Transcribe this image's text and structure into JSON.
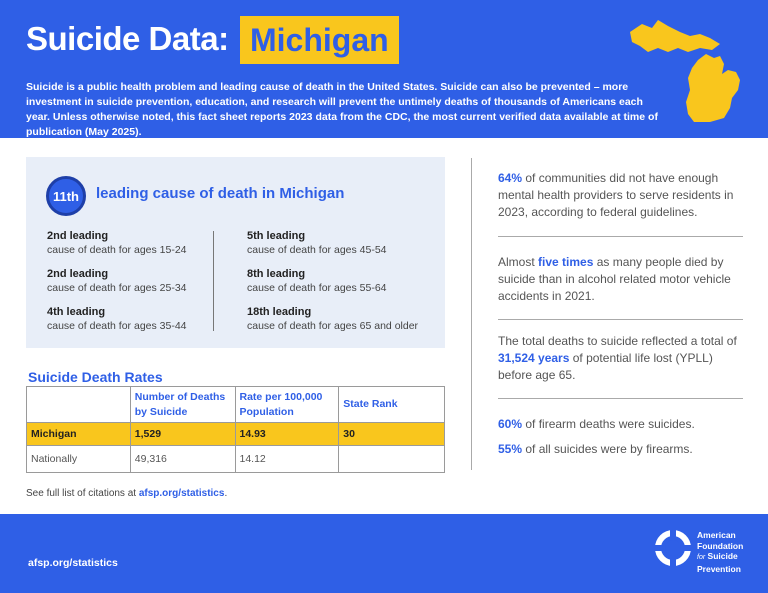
{
  "header": {
    "title": "Suicide Data:",
    "state": "Michigan",
    "intro": "Suicide is a public health problem and leading cause of death in the United States. Suicide can also be prevented – more investment in suicide prevention, education, and research will prevent the untimely deaths of thousands of Americans each year. Unless otherwise noted, this fact sheet reports 2023 data from the CDC, the most current verified data available at time of publication (May 2025).",
    "map_icon": "michigan-map-icon"
  },
  "leading": {
    "rank": "11th",
    "title": "leading cause of death in Michigan",
    "left": [
      {
        "rank": "2nd leading",
        "desc": "cause of death for ages 15-24"
      },
      {
        "rank": "2nd leading",
        "desc": "cause of death for ages 25-34"
      },
      {
        "rank": "4th leading",
        "desc": "cause of death for ages 35-44"
      }
    ],
    "right": [
      {
        "rank": "5th leading",
        "desc": "cause of death for ages 45-54"
      },
      {
        "rank": "8th leading",
        "desc": "cause of death for ages 55-64"
      },
      {
        "rank": "18th leading",
        "desc": "cause of death for ages 65 and older"
      }
    ]
  },
  "rates": {
    "title": "Suicide Death Rates",
    "headers": [
      "",
      "Number of Deaths by Suicide",
      "Rate per 100,000 Population",
      "State Rank"
    ],
    "rows": [
      [
        "Michigan",
        "1,529",
        "14.93",
        "30"
      ],
      [
        "Nationally",
        "49,316",
        "14.12",
        ""
      ]
    ],
    "highlight_color": "#f9c61d"
  },
  "citation": {
    "prefix": "See full list of citations at ",
    "link": "afsp.org/statistics",
    "suffix": "."
  },
  "stats": [
    {
      "pre": "",
      "bold": "64%",
      "post": " of communities did not have enough mental health providers to serve residents in 2023, according to federal guidelines."
    },
    {
      "pre": "Almost ",
      "bold": "five times",
      "post": " as many people died by suicide than in alcohol related motor vehicle accidents in 2021."
    },
    {
      "pre": "The total deaths to suicide reflected a total of ",
      "bold": "31,524 years",
      "post": " of potential life lost (YPLL) before age 65."
    },
    {
      "pre": "",
      "bold": "60%",
      "post": " of firearm deaths were suicides."
    },
    {
      "pre": "",
      "bold": "55%",
      "post": " of all suicides were by firearms."
    }
  ],
  "footer": {
    "url": "afsp.org/statistics",
    "logo_line1": "American",
    "logo_line2": "Foundation",
    "logo_line3_small": "for",
    "logo_line3": "Suicide",
    "logo_line4": "Prevention",
    "logo_icon": "lifebuoy-icon"
  },
  "colors": {
    "brand_blue": "#2f5fe6",
    "accent_yellow": "#f9c61d",
    "panel_bg": "#e8eef8"
  }
}
